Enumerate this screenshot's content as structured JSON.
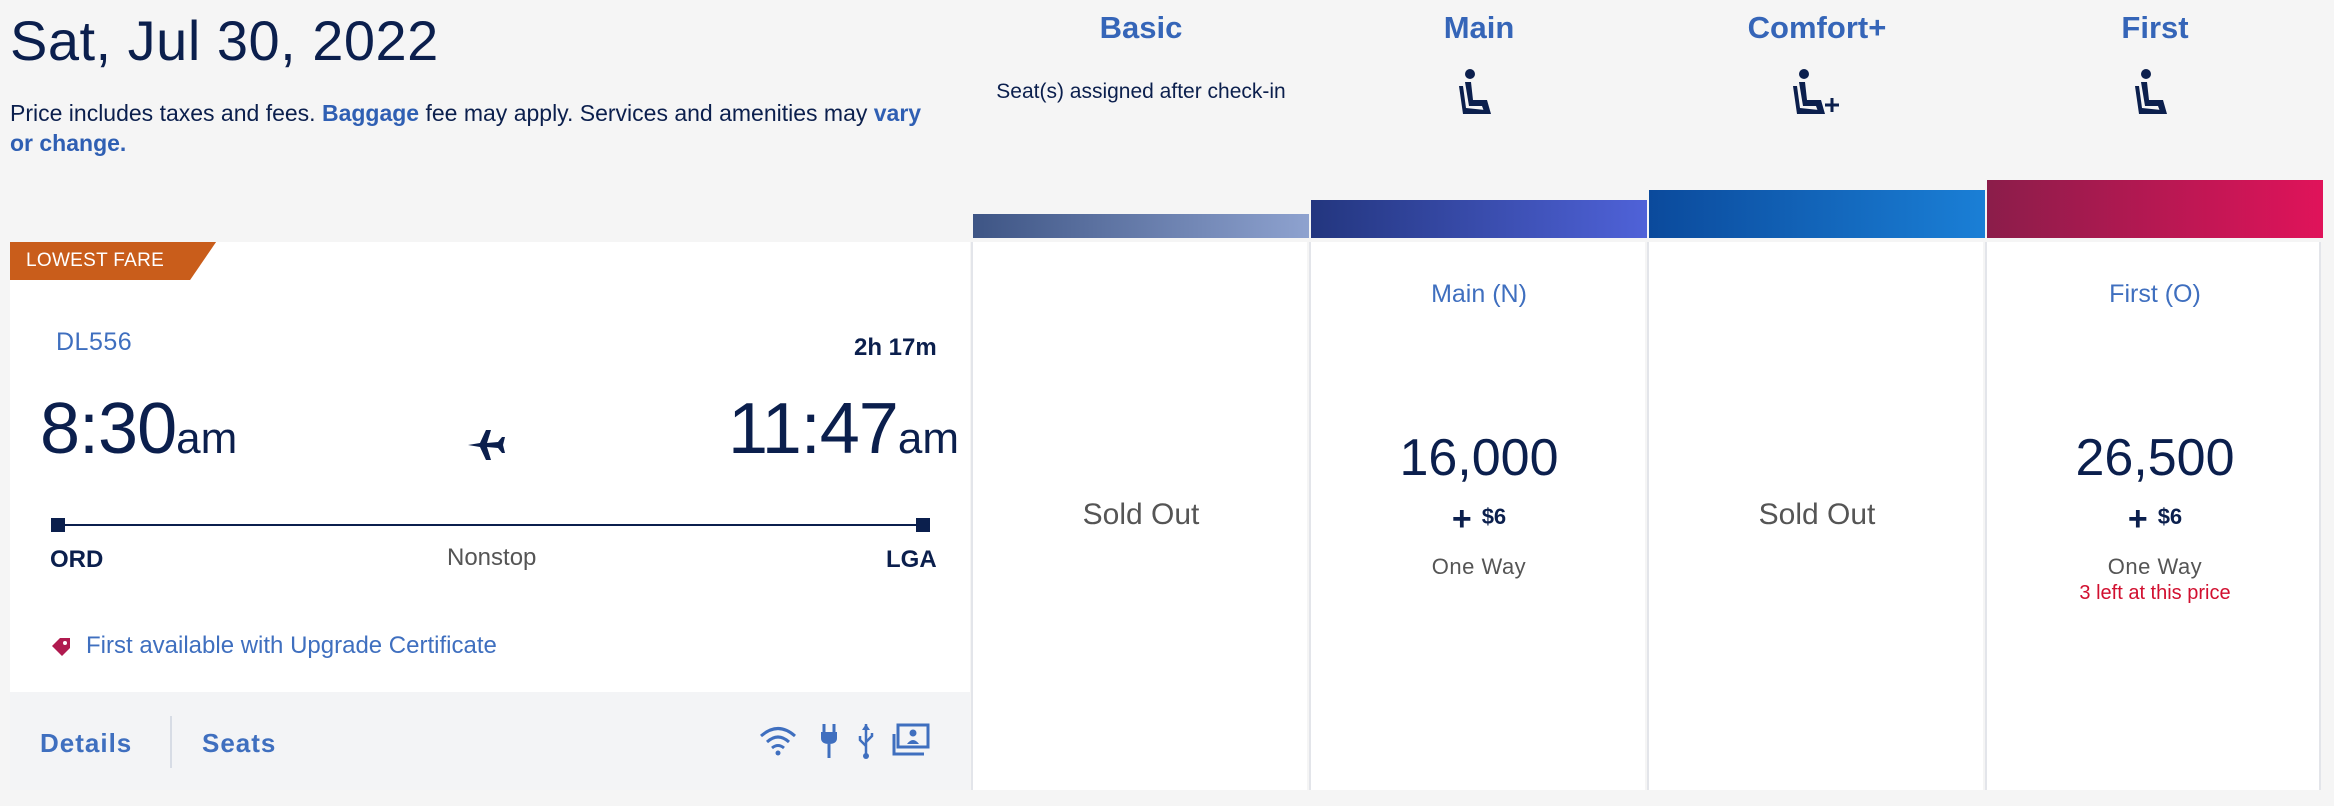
{
  "header": {
    "date": "Sat, Jul 30, 2022",
    "note_prefix": "Price includes taxes and fees.",
    "note_baggage": "Baggage",
    "note_mid": "fee may apply. Services and amenities may",
    "note_vary": "vary or change."
  },
  "cabins": [
    {
      "name": "Basic",
      "sub": "Seat(s) assigned after check-in",
      "color_from": "#3e5585",
      "color_to": "#8ea2cf"
    },
    {
      "name": "Main",
      "icon": "seat-icon",
      "color_from": "#23367f",
      "color_to": "#4f62d8"
    },
    {
      "name": "Comfort+",
      "icon": "seat-plus-icon",
      "color_from": "#0b4a9c",
      "color_to": "#1a7fd6"
    },
    {
      "name": "First",
      "icon": "seat-icon",
      "color_from": "#8b1d4a",
      "color_to": "#e0135a"
    }
  ],
  "flight": {
    "badge": "LOWEST FARE",
    "number": "DL556",
    "duration": "2h 17m",
    "depart_time": "8:30",
    "depart_ampm": "am",
    "arrive_time": "11:47",
    "arrive_ampm": "am",
    "origin": "ORD",
    "destination": "LGA",
    "stops": "Nonstop",
    "upgrade_note": "First available with Upgrade Certificate",
    "details_label": "Details",
    "seats_label": "Seats",
    "amenities": [
      "wifi-icon",
      "power-outlet-icon",
      "usb-icon",
      "entertainment-screen-icon"
    ]
  },
  "fares": {
    "basic": {
      "status": "Sold Out"
    },
    "main": {
      "fare_class": "Main (N)",
      "miles": "16,000",
      "plus": "+",
      "fee": "$6",
      "trip": "One Way"
    },
    "comfort": {
      "status": "Sold Out"
    },
    "first": {
      "fare_class": "First (O)",
      "miles": "26,500",
      "plus": "+",
      "fee": "$6",
      "trip": "One Way",
      "availability": "3 left at this price"
    }
  },
  "colors": {
    "accent": "#3f6fbf",
    "navy": "#0b1f4d",
    "badge": "#c95d1b",
    "warning": "#d10f2f"
  }
}
